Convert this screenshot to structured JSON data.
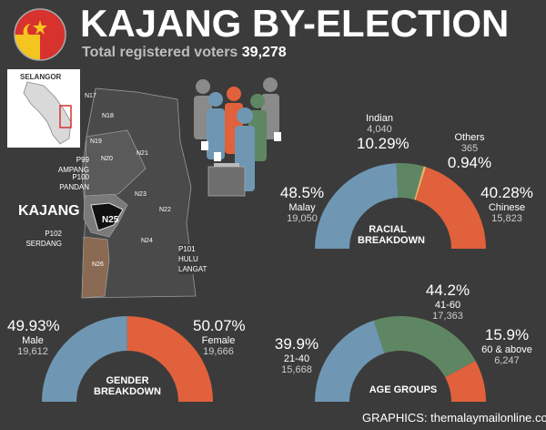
{
  "header": {
    "title": "KAJANG BY-ELECTION",
    "voters_label": "Total registered voters",
    "voters_value": "39,278"
  },
  "map": {
    "state_label": "SELANGOR",
    "seats": [
      {
        "code": "P99",
        "name": "AMPANG"
      },
      {
        "code": "P100",
        "name": "PANDAN"
      },
      {
        "code": "P102",
        "name": "SERDANG"
      },
      {
        "code": "P101",
        "name": "HULU LANGAT"
      }
    ],
    "highlight_name": "KAJANG",
    "highlight_code": "N25",
    "district_codes": [
      "N17",
      "N18",
      "N19",
      "N20",
      "N21",
      "N22",
      "N23",
      "N24",
      "N26"
    ]
  },
  "footer": {
    "credit": "GRAPHICS: themalaymailonline.com"
  },
  "colors": {
    "blue": "#6f97b3",
    "green": "#5f8663",
    "orange": "#e0613b",
    "bg": "#3b3b3b",
    "panel": "#4f4f4f"
  },
  "chart_data": [
    {
      "type": "pie",
      "title": "RACIAL BREAKDOWN",
      "categories": [
        "Malay",
        "Indian",
        "Others",
        "Chinese"
      ],
      "values": [
        19050,
        4040,
        365,
        15823
      ],
      "percent_labels": [
        "48.5%",
        "10.29%",
        "0.94%",
        "40.28%"
      ],
      "count_labels": [
        "19,050",
        "4,040",
        "365",
        "15,823"
      ],
      "colors": [
        "#6f97b3",
        "#5f8663",
        "#e8b06a",
        "#e0613b"
      ]
    },
    {
      "type": "pie",
      "title": "GENDER BREAKDOWN",
      "categories": [
        "Male",
        "Female"
      ],
      "values": [
        19612,
        19666
      ],
      "percent_labels": [
        "49.93%",
        "50.07%"
      ],
      "count_labels": [
        "19,612",
        "19,666"
      ],
      "colors": [
        "#6f97b3",
        "#e0613b"
      ]
    },
    {
      "type": "pie",
      "title": "AGE GROUPS",
      "categories": [
        "21-40",
        "41-60",
        "60 & above"
      ],
      "values": [
        15668,
        17363,
        6247
      ],
      "percent_labels": [
        "39.9%",
        "44.2%",
        "15.9%"
      ],
      "count_labels": [
        "15,668",
        "17,363",
        "6,247"
      ],
      "colors": [
        "#6f97b3",
        "#5f8663",
        "#e0613b"
      ]
    }
  ]
}
